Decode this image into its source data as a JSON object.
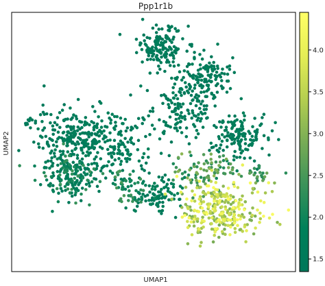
{
  "chart_data": {
    "type": "scatter",
    "title": "Ppp1r1b",
    "xlabel": "UMAP1",
    "ylabel": "UMAP2",
    "xlim": [
      0,
      20
    ],
    "ylim": [
      0,
      18
    ],
    "grid": false,
    "colorbar": {
      "ticks": [
        1.5,
        2.0,
        2.5,
        3.0,
        3.5,
        4.0
      ],
      "tick_labels": [
        "1.5",
        "2.0",
        "2.5",
        "3.0",
        "3.5",
        "4.0"
      ],
      "range": [
        1.35,
        4.45
      ],
      "colors": [
        "#00775a",
        "#00805a",
        "#3a925a",
        "#78ac55",
        "#b5cf50",
        "#e5ee55",
        "#ffff66"
      ]
    },
    "clusters": [
      {
        "cx": 10.5,
        "cy": 15.6,
        "sx": 1.1,
        "sy": 1.0,
        "n": 150,
        "vmin": 1.4,
        "vmax": 1.75
      },
      {
        "cx": 13.6,
        "cy": 13.5,
        "sx": 1.2,
        "sy": 1.1,
        "n": 130,
        "vmin": 1.4,
        "vmax": 1.8
      },
      {
        "cx": 11.8,
        "cy": 11.2,
        "sx": 1.6,
        "sy": 1.4,
        "n": 140,
        "vmin": 1.4,
        "vmax": 1.8
      },
      {
        "cx": 15.9,
        "cy": 9.4,
        "sx": 1.4,
        "sy": 1.1,
        "n": 150,
        "vmin": 1.4,
        "vmax": 1.85
      },
      {
        "cx": 4.6,
        "cy": 9.2,
        "sx": 2.0,
        "sy": 1.4,
        "n": 260,
        "vmin": 1.4,
        "vmax": 1.8
      },
      {
        "cx": 4.3,
        "cy": 6.6,
        "sx": 1.5,
        "sy": 1.1,
        "n": 170,
        "vmin": 1.45,
        "vmax": 2.4
      },
      {
        "cx": 7.6,
        "cy": 8.8,
        "sx": 1.5,
        "sy": 1.6,
        "n": 110,
        "vmin": 1.4,
        "vmax": 1.9
      },
      {
        "cx": 8.4,
        "cy": 5.8,
        "sx": 0.8,
        "sy": 0.8,
        "n": 55,
        "vmin": 1.6,
        "vmax": 2.6
      },
      {
        "cx": 10.3,
        "cy": 5.2,
        "sx": 1.0,
        "sy": 0.9,
        "n": 90,
        "vmin": 1.4,
        "vmax": 2.0
      },
      {
        "cx": 14.8,
        "cy": 4.2,
        "sx": 2.0,
        "sy": 1.5,
        "n": 300,
        "vmin": 2.9,
        "vmax": 4.4
      },
      {
        "cx": 13.6,
        "cy": 7.0,
        "sx": 1.4,
        "sy": 0.9,
        "n": 90,
        "vmin": 2.0,
        "vmax": 3.1
      },
      {
        "cx": 17.6,
        "cy": 6.6,
        "sx": 0.6,
        "sy": 0.4,
        "n": 20,
        "vmin": 2.2,
        "vmax": 2.8
      },
      {
        "cx": 1.3,
        "cy": 10.4,
        "sx": 0.3,
        "sy": 0.2,
        "n": 10,
        "vmin": 1.4,
        "vmax": 1.6
      }
    ]
  }
}
